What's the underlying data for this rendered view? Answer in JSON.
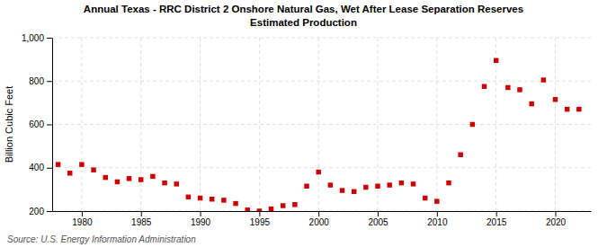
{
  "chart_data": {
    "type": "scatter",
    "title": "Annual Texas - RRC District 2 Onshore Natural Gas, Wet After Lease Separation Reserves\nEstimated Production",
    "ylabel": "Billion Cubic Feet",
    "source": "Source: U.S. Energy Information Administration",
    "x": [
      1978,
      1979,
      1980,
      1981,
      1982,
      1983,
      1984,
      1985,
      1986,
      1987,
      1988,
      1989,
      1990,
      1991,
      1992,
      1993,
      1994,
      1995,
      1996,
      1997,
      1998,
      1999,
      2000,
      2001,
      2002,
      2003,
      2004,
      2005,
      2006,
      2007,
      2008,
      2009,
      2010,
      2011,
      2012,
      2013,
      2014,
      2015,
      2016,
      2017,
      2018,
      2019,
      2020,
      2021,
      2022
    ],
    "values": [
      415,
      375,
      415,
      390,
      355,
      335,
      350,
      345,
      360,
      330,
      325,
      265,
      260,
      255,
      250,
      235,
      205,
      200,
      210,
      225,
      230,
      315,
      380,
      320,
      295,
      290,
      310,
      315,
      320,
      330,
      325,
      260,
      245,
      330,
      460,
      600,
      775,
      895,
      770,
      760,
      695,
      805,
      715,
      670,
      670
    ],
    "color": "#cc0000",
    "marker": "square",
    "xlim": [
      1977.5,
      2023
    ],
    "ylim": [
      200,
      1000
    ],
    "xticks": [
      1980,
      1985,
      1990,
      1995,
      2000,
      2005,
      2010,
      2015,
      2020
    ],
    "yticks": [
      200,
      400,
      600,
      800,
      {
        "value": 1000,
        "label": "1,000"
      }
    ],
    "grid": true
  }
}
